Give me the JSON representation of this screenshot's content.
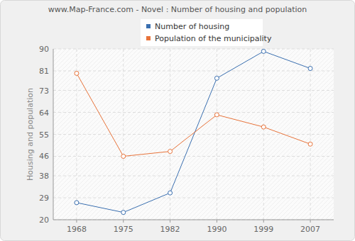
{
  "chart_data": {
    "type": "line",
    "title": "www.Map-France.com - Novel : Number of housing and population",
    "y_label": "Housing and population",
    "categories": [
      "1968",
      "1975",
      "1982",
      "1990",
      "1999",
      "2007"
    ],
    "series": [
      {
        "name": "Number of housing",
        "color": "#3a6fb0",
        "values": [
          27,
          23,
          31,
          78,
          89,
          82
        ]
      },
      {
        "name": "Population of the municipality",
        "color": "#e8733a",
        "values": [
          80,
          46,
          48,
          63,
          58,
          51
        ]
      }
    ],
    "ylim": [
      20,
      90
    ],
    "yticks": [
      20,
      29,
      38,
      46,
      55,
      64,
      73,
      81,
      90
    ],
    "grid": true,
    "legend": "top",
    "marker": "circle"
  }
}
